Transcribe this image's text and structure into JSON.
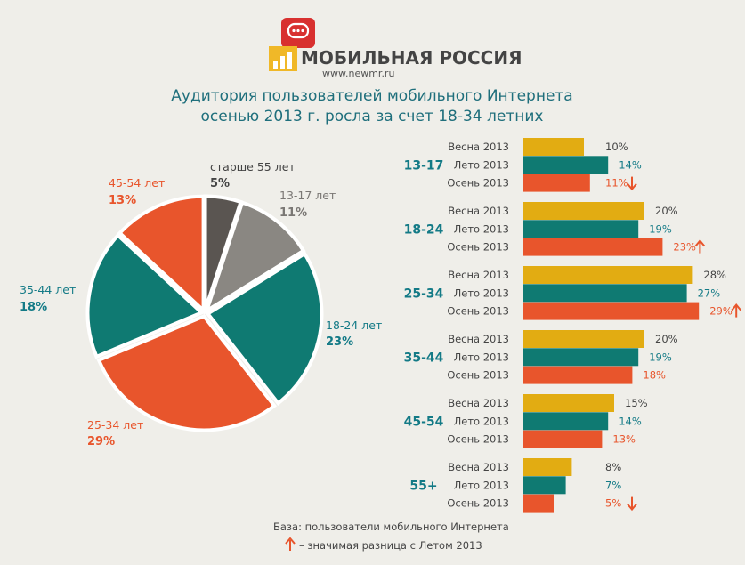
{
  "logo": {
    "brand": "МОБИЛЬНАЯ РОССИЯ",
    "url": "www.newmr.ru",
    "red": "#d8302f",
    "yellow": "#f0b828",
    "text_color": "#444444"
  },
  "title": {
    "line1": "Аудитория пользователей мобильного Интернета",
    "line2": "осенью 2013 г. росла за счет 18-34 летних",
    "color": "#1f6f7c"
  },
  "colors": {
    "spring": "#e2ac12",
    "summer": "#0f7a72",
    "autumn": "#e8552c",
    "older": "#5a5551",
    "gray": "#8a8782",
    "label_dark": "#444444",
    "teal_text": "#137a86"
  },
  "footer": {
    "base": "База: пользователи мобильного Интернета",
    "note": "– значимая разница с Летом 2013"
  },
  "chart_data": [
    {
      "type": "pie",
      "title": "",
      "slices": [
        {
          "label": "старше 55 лет",
          "value": 5,
          "value_label": "5%",
          "color": "#5a5551",
          "label_color": "#444444"
        },
        {
          "label": "13-17 лет",
          "value": 11,
          "value_label": "11%",
          "color": "#8a8782",
          "label_color": "#7a7774"
        },
        {
          "label": "18-24 лет",
          "value": 23,
          "value_label": "23%",
          "color": "#0f7a72",
          "label_color": "#137a86"
        },
        {
          "label": "25-34 лет",
          "value": 29,
          "value_label": "29%",
          "color": "#e8552c",
          "label_color": "#e8552c"
        },
        {
          "label": "35-44 лет",
          "value": 18,
          "value_label": "18%",
          "color": "#0f7a72",
          "label_color": "#137a86"
        },
        {
          "label": "45-54 лет",
          "value": 13,
          "value_label": "13%",
          "color": "#e8552c",
          "label_color": "#e8552c"
        }
      ]
    },
    {
      "type": "bar",
      "orientation": "horizontal",
      "series_names": [
        "Весна 2013",
        "Лето 2013",
        "Осень 2013"
      ],
      "xlim": [
        0,
        30
      ],
      "groups": [
        {
          "label": "13-17",
          "values": [
            10,
            14,
            11
          ],
          "value_labels": [
            "10%",
            "14%",
            "11%"
          ],
          "arrow": "down"
        },
        {
          "label": "18-24",
          "values": [
            20,
            19,
            23
          ],
          "value_labels": [
            "20%",
            "19%",
            "23%"
          ],
          "arrow": "up"
        },
        {
          "label": "25-34",
          "values": [
            28,
            27,
            29
          ],
          "value_labels": [
            "28%",
            "27%",
            "29%"
          ],
          "arrow": "up"
        },
        {
          "label": "35-44",
          "values": [
            20,
            19,
            18
          ],
          "value_labels": [
            "20%",
            "19%",
            "18%"
          ],
          "arrow": ""
        },
        {
          "label": "45-54",
          "values": [
            15,
            14,
            13
          ],
          "value_labels": [
            "15%",
            "14%",
            "13%"
          ],
          "arrow": ""
        },
        {
          "label": "55+",
          "values": [
            8,
            7,
            5
          ],
          "value_labels": [
            "8%",
            "7%",
            "5%"
          ],
          "arrow": "down"
        }
      ]
    }
  ]
}
